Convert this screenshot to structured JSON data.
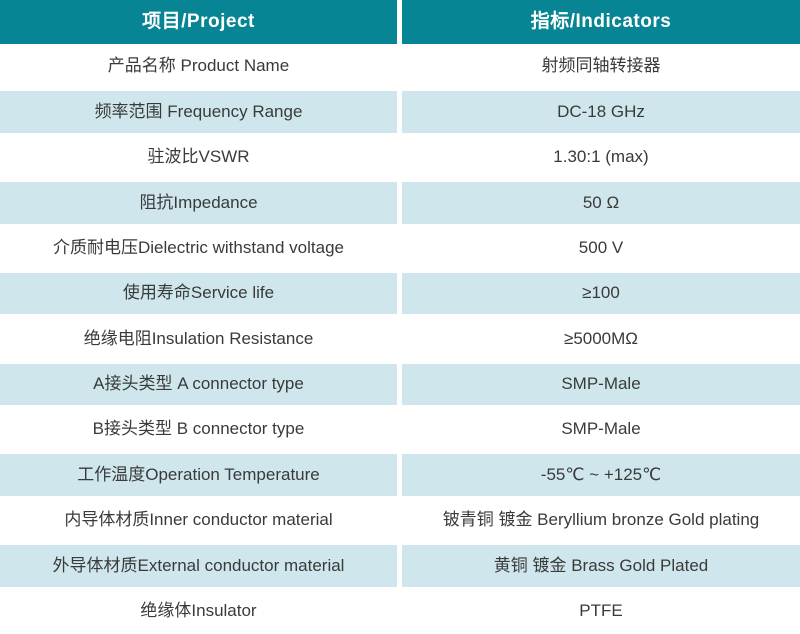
{
  "table": {
    "header": {
      "project_label": "项目/Project",
      "indicators_label": "指标/Indicators"
    },
    "rows": [
      {
        "project": "产品名称 Product Name",
        "indicator": "射频同轴转接器"
      },
      {
        "project": "频率范围 Frequency Range",
        "indicator": "DC-18 GHz"
      },
      {
        "project": "驻波比VSWR",
        "indicator": "1.30:1 (max)"
      },
      {
        "project": "阻抗Impedance",
        "indicator": "50 Ω"
      },
      {
        "project": "介质耐电压Dielectric withstand voltage",
        "indicator": "500 V"
      },
      {
        "project": "使用寿命Service life",
        "indicator": "≥100"
      },
      {
        "project": "绝缘电阻Insulation Resistance",
        "indicator": "≥5000MΩ"
      },
      {
        "project": "A接头类型 A connector type",
        "indicator": "SMP-Male"
      },
      {
        "project": "B接头类型 B connector type",
        "indicator": "SMP-Male"
      },
      {
        "project": "工作温度Operation Temperature",
        "indicator": "-55℃ ~ +125℃"
      },
      {
        "project": "内导体材质Inner conductor material",
        "indicator": "铍青铜 镀金 Beryllium bronze Gold plating"
      },
      {
        "project": "外导体材质External conductor material",
        "indicator": "黄铜 镀金 Brass Gold Plated"
      },
      {
        "project": "绝缘体Insulator",
        "indicator": "PTFE"
      }
    ],
    "colors": {
      "header_bg": "#088594",
      "alt_row_bg": "#cfe7ec",
      "row_bg": "#ffffff",
      "header_text": "#ffffff",
      "body_text": "#3a3a3a",
      "divider": "#ffffff"
    }
  }
}
